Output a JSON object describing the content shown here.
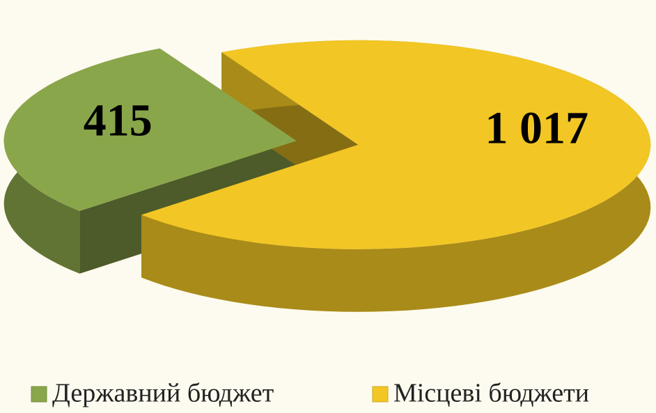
{
  "chart_data": {
    "type": "pie",
    "categories": [
      "Державний бюджет",
      "Місцеві бюджети"
    ],
    "values": [
      415,
      1017
    ],
    "value_labels": [
      "415",
      "1 017"
    ],
    "colors": [
      "#8aa64a",
      "#f2c624"
    ],
    "legend": "bottom"
  }
}
